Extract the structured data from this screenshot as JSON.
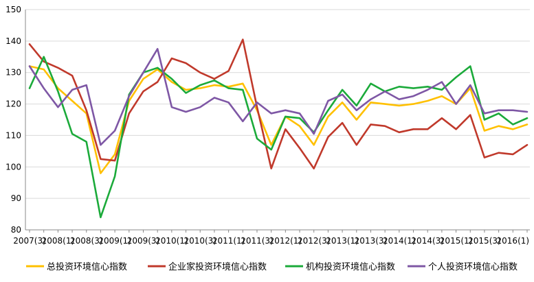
{
  "chart_data": {
    "type": "line",
    "title": "",
    "xlabel": "",
    "ylabel": "",
    "ylim": [
      80,
      150
    ],
    "yticks": [
      80,
      90,
      100,
      110,
      120,
      130,
      140,
      150
    ],
    "grid": true,
    "legend_position": "bottom",
    "x": [
      "2007(3)",
      "2007(4)",
      "2008(1)",
      "2008(2)",
      "2008(3)",
      "2008(4)",
      "2009(1)",
      "2009(2)",
      "2009(3)",
      "2009(4)",
      "2010(1)",
      "2010(2)",
      "2010(3)",
      "2010(4)",
      "2011(1)",
      "2011(2)",
      "2011(3)",
      "2011(4)",
      "2012(1)",
      "2012(2)",
      "2012(3)",
      "2012(4)",
      "2013(1)",
      "2013(2)",
      "2013(3)",
      "2013(4)",
      "2014(1)",
      "2014(2)",
      "2014(3)",
      "2014(4)",
      "2015(1)",
      "2015(2)",
      "2015(3)",
      "2015(4)",
      "2016(1)",
      "2016(2)"
    ],
    "xtick_labels": [
      "2007(3)",
      "2008(1)",
      "2008(3)",
      "2009(1)",
      "2009(3)",
      "2010(1)",
      "2010(3)",
      "2011(1)",
      "2011(3)",
      "2012(1)",
      "2012(3)",
      "2013(1)",
      "2013(3)",
      "2014(1)",
      "2014(3)",
      "2015(1)",
      "2015(3)",
      "2016(1)"
    ],
    "xtick_indices": [
      0,
      2,
      4,
      6,
      8,
      10,
      12,
      14,
      16,
      18,
      20,
      22,
      24,
      26,
      28,
      30,
      32,
      34
    ],
    "series": [
      {
        "name": "总投资环境信心指数",
        "color": "#FFC000",
        "values": [
          132,
          131,
          125,
          121,
          117,
          98,
          104,
          121,
          128,
          131,
          127,
          124.5,
          125,
          126,
          125.5,
          126.5,
          118,
          107,
          116,
          113,
          107,
          116,
          120.5,
          115,
          120.5,
          120,
          119.5,
          120,
          121,
          122.5,
          120,
          125,
          111.5,
          113,
          112,
          113.5
        ]
      },
      {
        "name": "企业家投资环境信心指数",
        "color": "#C0392B",
        "values": [
          139,
          133.5,
          131.5,
          129,
          118,
          102.5,
          102,
          117,
          124,
          127,
          134.5,
          133,
          130,
          128,
          130.5,
          140.5,
          119,
          99.5,
          112,
          106,
          99.5,
          109.5,
          114,
          107,
          113.5,
          113,
          111,
          112,
          112,
          115.5,
          112,
          116.5,
          103,
          104.5,
          104,
          107
        ]
      },
      {
        "name": "机构投资环境信心指数",
        "color": "#1BAA3A",
        "values": [
          125,
          135,
          124,
          110.5,
          108,
          84,
          97,
          123,
          130,
          131.5,
          128,
          123.5,
          126,
          127.5,
          125,
          124.5,
          109,
          105.5,
          116,
          115.5,
          111,
          118,
          124.5,
          119.5,
          126.5,
          124,
          125.5,
          125,
          125.5,
          124.5,
          128.5,
          132,
          115,
          117,
          113.5,
          115.5
        ]
      },
      {
        "name": "个人投资环境信心指数",
        "color": "#7E57A5",
        "values": [
          132,
          125,
          119,
          124.5,
          126,
          107,
          111.5,
          122.5,
          130,
          137.5,
          119,
          117.5,
          119,
          122,
          120.5,
          114.5,
          120.5,
          117,
          118,
          117,
          110.5,
          121,
          123,
          118,
          121.5,
          124,
          121.5,
          122.5,
          124.5,
          127,
          120,
          126,
          117,
          118,
          118,
          117.5
        ]
      }
    ]
  }
}
